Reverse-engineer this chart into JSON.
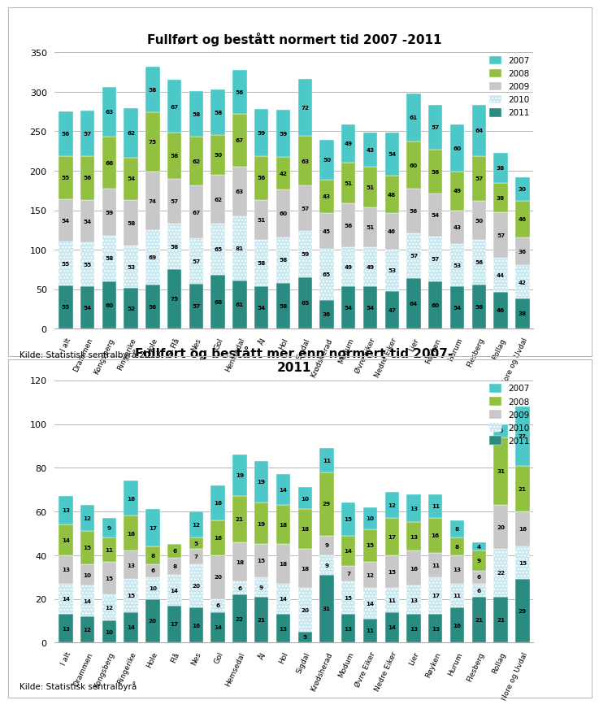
{
  "chart1": {
    "title": "Fullført og bestått normert tid 2007 -2011",
    "categories": [
      "I alt",
      "Drammen",
      "Kongsberg",
      "Ringerike",
      "Hole",
      "Flå",
      "Nes",
      "Gol",
      "Hemsedal",
      "Ål",
      "Hol",
      "Sigdal",
      "Krødsherad",
      "Modum",
      "Øvre Eiker",
      "Nedre Eiker",
      "Lier",
      "Røyken",
      "Hurum",
      "Flesberg",
      "Rollag",
      "Nore og Uvdal"
    ],
    "series": {
      "2011": [
        55,
        54,
        60,
        52,
        56,
        75,
        57,
        68,
        61,
        54,
        58,
        65,
        36,
        54,
        54,
        47,
        64,
        60,
        54,
        56,
        46,
        38
      ],
      "2010": [
        55,
        55,
        58,
        53,
        69,
        58,
        57,
        65,
        81,
        58,
        58,
        59,
        65,
        49,
        49,
        53,
        57,
        57,
        53,
        56,
        44,
        42
      ],
      "2009": [
        54,
        54,
        59,
        58,
        74,
        57,
        67,
        62,
        63,
        51,
        60,
        57,
        45,
        56,
        51,
        46,
        56,
        54,
        43,
        50,
        57,
        36
      ],
      "2008": [
        55,
        56,
        66,
        54,
        75,
        58,
        62,
        50,
        67,
        56,
        42,
        63,
        43,
        51,
        51,
        48,
        60,
        56,
        49,
        57,
        38,
        46
      ],
      "2007": [
        56,
        57,
        63,
        62,
        58,
        67,
        58,
        58,
        56,
        59,
        59,
        72,
        50,
        49,
        43,
        54,
        61,
        57,
        60,
        64,
        38,
        30
      ]
    },
    "ylim": [
      0,
      350
    ],
    "yticks": [
      0,
      50,
      100,
      150,
      200,
      250,
      300,
      350
    ],
    "source": "Kilde: Statistisk sentralbyrå 2013."
  },
  "chart2": {
    "title": "Fullført og bestått mer enn normert tid 2007-\n2011",
    "categories": [
      "I alt",
      "Drammen",
      "Kongsberg",
      "Ringerike",
      "Hole",
      "Flå",
      "Nes",
      "Gol",
      "Hemsedal",
      "Ål",
      "Hol",
      "Sigdal",
      "Krødsherad",
      "Modum",
      "Øvre Eiker",
      "Nedre Eiker",
      "Lier",
      "Røyken",
      "Hurum",
      "Flesberg",
      "Rollag",
      "Nore og Uvdal"
    ],
    "series": {
      "2011": [
        13,
        12,
        10,
        14,
        20,
        17,
        16,
        14,
        22,
        21,
        13,
        5,
        31,
        13,
        11,
        14,
        13,
        13,
        16,
        21,
        21,
        29
      ],
      "2010": [
        14,
        14,
        12,
        15,
        10,
        14,
        20,
        6,
        6,
        9,
        14,
        20,
        9,
        15,
        14,
        11,
        13,
        17,
        11,
        6,
        22,
        15
      ],
      "2009": [
        13,
        10,
        15,
        13,
        6,
        8,
        7,
        20,
        18,
        15,
        18,
        18,
        9,
        7,
        12,
        15,
        16,
        11,
        13,
        6,
        20,
        16
      ],
      "2008": [
        14,
        15,
        11,
        16,
        8,
        6,
        5,
        16,
        21,
        19,
        18,
        18,
        29,
        14,
        15,
        17,
        13,
        16,
        8,
        9,
        31,
        21
      ],
      "2007": [
        13,
        12,
        9,
        16,
        17,
        0,
        12,
        16,
        19,
        19,
        14,
        10,
        11,
        15,
        10,
        12,
        13,
        11,
        8,
        4,
        6,
        27
      ]
    },
    "ylim": [
      0,
      120
    ],
    "yticks": [
      0,
      20,
      40,
      60,
      80,
      100,
      120
    ],
    "source": "Kilde: Statistisk sentralbyrå"
  },
  "colors": {
    "2007": "#4CC8C8",
    "2008": "#92C040",
    "2009": "#C8C8C8",
    "2010": "#C8E8F0",
    "2011": "#2A8B80"
  },
  "hatch": {
    "2007": "",
    "2008": "",
    "2009": "",
    "2010": "....",
    "2011": ""
  },
  "legend_order": [
    "2007",
    "2008",
    "2009",
    "2010",
    "2011"
  ],
  "fig_width": 7.18,
  "fig_height": 8.49,
  "dpi": 100
}
